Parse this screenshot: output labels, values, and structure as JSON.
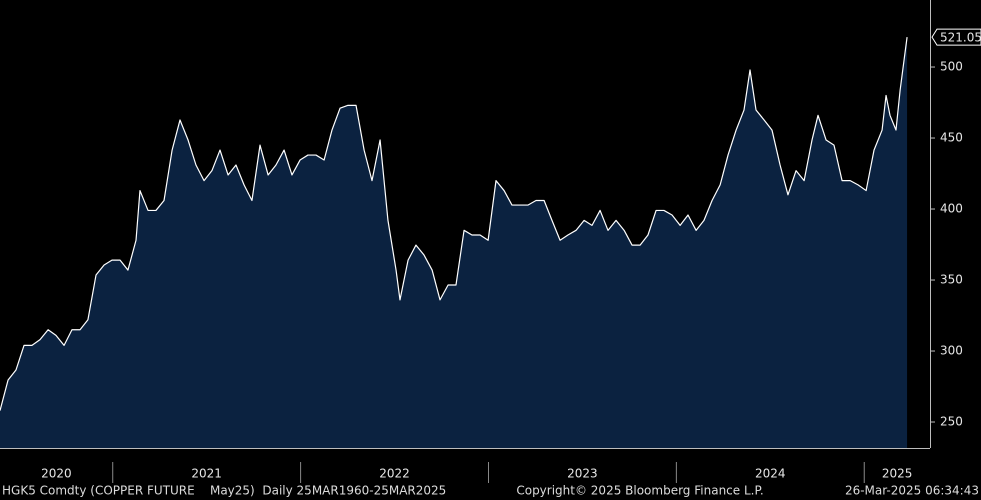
{
  "chart_data": {
    "type": "area",
    "x": [
      2020.4,
      2020.443,
      2020.485,
      2020.528,
      2020.57,
      2020.613,
      2020.656,
      2020.698,
      2020.741,
      2020.783,
      2020.826,
      2020.868,
      2020.911,
      2020.954,
      2020.996,
      2021.039,
      2021.081,
      2021.124,
      2021.145,
      2021.188,
      2021.23,
      2021.273,
      2021.316,
      2021.358,
      2021.401,
      2021.443,
      2021.486,
      2021.528,
      2021.571,
      2021.614,
      2021.656,
      2021.699,
      2021.741,
      2021.784,
      2021.827,
      2021.869,
      2021.912,
      2021.954,
      2021.997,
      2022.039,
      2022.082,
      2022.125,
      2022.167,
      2022.21,
      2022.252,
      2022.295,
      2022.338,
      2022.38,
      2022.423,
      2022.465,
      2022.508,
      2022.529,
      2022.572,
      2022.614,
      2022.657,
      2022.7,
      2022.742,
      2022.785,
      2022.827,
      2022.87,
      2022.912,
      2022.955,
      2022.998,
      2023.04,
      2023.083,
      2023.125,
      2023.168,
      2023.211,
      2023.253,
      2023.296,
      2023.338,
      2023.381,
      2023.423,
      2023.466,
      2023.509,
      2023.551,
      2023.594,
      2023.636,
      2023.679,
      2023.722,
      2023.764,
      2023.807,
      2023.849,
      2023.892,
      2023.934,
      2023.977,
      2024.02,
      2024.062,
      2024.105,
      2024.147,
      2024.19,
      2024.233,
      2024.275,
      2024.318,
      2024.36,
      2024.392,
      2024.424,
      2024.467,
      2024.509,
      2024.552,
      2024.594,
      2024.637,
      2024.68,
      2024.722,
      2024.754,
      2024.797,
      2024.839,
      2024.882,
      2024.925,
      2024.967,
      2025.01,
      2025.052,
      2025.095,
      2025.116,
      2025.137,
      2025.169,
      2025.191,
      2025.212,
      2025.228
    ],
    "series": [
      {
        "color": "#ffffff",
        "fill": "#0b2240",
        "values": [
          258,
          279.6,
          286.6,
          304,
          304,
          308,
          315,
          311,
          304,
          315,
          315,
          322,
          353.5,
          360.6,
          364,
          364,
          357,
          378,
          413,
          399,
          399,
          406,
          441.5,
          462.7,
          448.6,
          431,
          420,
          427,
          441.5,
          424,
          431,
          417,
          406,
          445,
          424,
          431,
          441.5,
          424,
          434.5,
          438,
          438,
          434.5,
          455.6,
          471,
          473,
          473,
          441.5,
          420,
          448.6,
          392,
          357,
          336,
          364,
          374.6,
          367.6,
          357,
          336,
          346.5,
          346.5,
          385,
          381.7,
          381.7,
          378,
          420,
          413,
          402.8,
          402.8,
          402.8,
          406,
          406,
          392,
          378,
          381.7,
          385,
          392,
          388.5,
          399,
          385,
          392,
          385,
          374.6,
          374.6,
          381.7,
          399,
          399,
          395.8,
          388.5,
          395.8,
          385,
          392,
          406,
          417,
          438,
          455.6,
          469.7,
          497.9,
          469.7,
          462.7,
          455.6,
          431,
          410,
          427,
          420,
          448.6,
          466,
          448.6,
          445,
          420,
          420,
          417,
          413,
          441.5,
          455.6,
          480,
          466,
          455.6,
          483.8,
          505,
          521.05
        ]
      }
    ],
    "xlim": [
      2020.4,
      2025.35
    ],
    "xticks": [
      {
        "value": 2020,
        "label": "2020"
      },
      {
        "value": 2021,
        "label": "2021"
      },
      {
        "value": 2022,
        "label": "2022"
      },
      {
        "value": 2023,
        "label": "2023"
      },
      {
        "value": 2024,
        "label": "2024"
      },
      {
        "value": 2025,
        "label": "2025"
      }
    ],
    "ylim": [
      231.7,
      547.2
    ],
    "yticks": [
      250,
      300,
      350,
      400,
      450,
      500
    ],
    "footer": {
      "left": "HGK5 Comdty (COPPER FUTURE    May25)  Daily 25MAR1960-25MAR2025",
      "center": "Copyright© 2025 Bloomberg Finance L.P.",
      "right": "26-Mar-2025 06:34:43"
    }
  }
}
